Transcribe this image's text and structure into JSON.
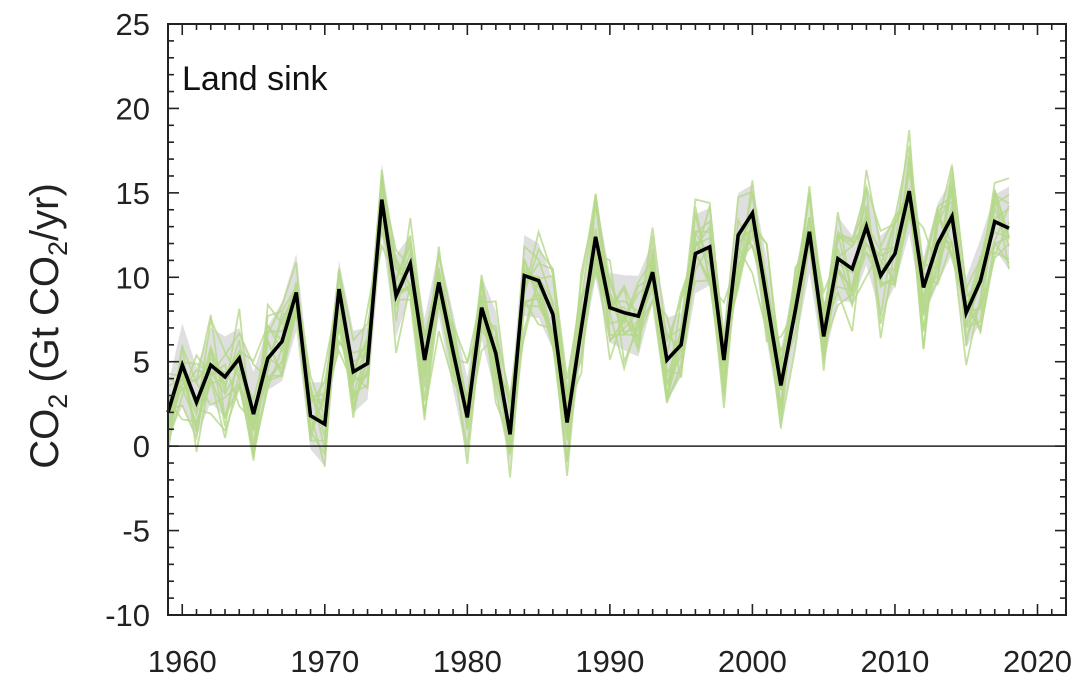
{
  "chart_data": {
    "type": "line",
    "title": "Land sink",
    "ylabel": {
      "base": "CO",
      "sub": "2",
      "mid": " (Gt CO",
      "sub2": "2",
      "end": "/yr)"
    },
    "xlim": [
      1959,
      2022
    ],
    "ylim": [
      -10,
      25
    ],
    "xticks": [
      1960,
      1970,
      1980,
      1990,
      2000,
      2010,
      2020
    ],
    "yticks": [
      -10,
      -5,
      0,
      5,
      10,
      15,
      20,
      25
    ],
    "zero_line": true,
    "colors": {
      "main": "#000000",
      "ensemble": "#b5d88a",
      "band": "#d9d9d9",
      "axis": "#222222"
    },
    "x": [
      1959,
      1960,
      1961,
      1962,
      1963,
      1964,
      1965,
      1966,
      1967,
      1968,
      1969,
      1970,
      1971,
      1972,
      1973,
      1974,
      1975,
      1976,
      1977,
      1978,
      1979,
      1980,
      1981,
      1982,
      1983,
      1984,
      1985,
      1986,
      1987,
      1988,
      1989,
      1990,
      1991,
      1992,
      1993,
      1994,
      1995,
      1996,
      1997,
      1998,
      1999,
      2000,
      2001,
      2002,
      2003,
      2004,
      2005,
      2006,
      2007,
      2008,
      2009,
      2010,
      2011,
      2012,
      2013,
      2014,
      2015,
      2016,
      2017,
      2018
    ],
    "series": [
      {
        "values": [
          2.0,
          4.8,
          2.6,
          4.8,
          4.1,
          5.2,
          1.9,
          5.2,
          6.2,
          9.1,
          1.8,
          1.3,
          9.3,
          4.4,
          4.9,
          14.6,
          8.9,
          10.8,
          5.1,
          9.7,
          5.6,
          1.7,
          8.2,
          5.5,
          0.7,
          10.1,
          9.8,
          7.8,
          1.4,
          7.0,
          12.4,
          8.2,
          7.9,
          7.7,
          10.3,
          5.1,
          6.0,
          11.4,
          11.8,
          5.1,
          12.5,
          13.8,
          8.7,
          3.6,
          8.0,
          12.7,
          6.5,
          11.1,
          10.5,
          13.0,
          10.1,
          11.4,
          15.1,
          9.4,
          12.0,
          13.6,
          7.9,
          9.8,
          13.3,
          12.9
        ]
      }
    ]
  }
}
